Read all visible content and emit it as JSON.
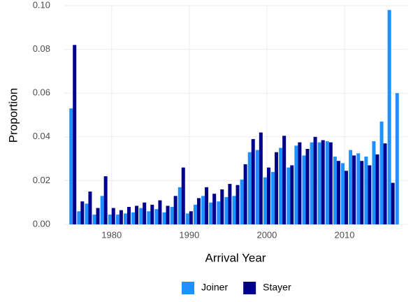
{
  "chart_data": {
    "type": "bar",
    "x_label": "Arrival Year",
    "y_label": "Proportion",
    "x": [
      1975,
      1976,
      1977,
      1978,
      1979,
      1980,
      1981,
      1982,
      1983,
      1984,
      1985,
      1986,
      1987,
      1988,
      1989,
      1990,
      1991,
      1992,
      1993,
      1994,
      1995,
      1996,
      1997,
      1998,
      1999,
      2000,
      2001,
      2002,
      2003,
      2004,
      2005,
      2006,
      2007,
      2008,
      2009,
      2010,
      2011,
      2012,
      2013,
      2014,
      2015,
      2016,
      2017
    ],
    "series": [
      {
        "name": "Joiner",
        "color": "#1e90ff",
        "values": [
          0.053,
          0.006,
          0.0095,
          0.0045,
          0.013,
          0.0045,
          0.0045,
          0.005,
          0.0055,
          0.0075,
          0.006,
          0.007,
          0.0055,
          0.008,
          0.017,
          0.005,
          0.009,
          0.013,
          0.01,
          0.0105,
          0.0125,
          0.013,
          0.0205,
          0.033,
          0.034,
          0.0215,
          0.024,
          0.035,
          0.026,
          0.036,
          0.0315,
          0.0375,
          0.0375,
          0.038,
          0.031,
          0.028,
          0.034,
          0.0325,
          0.031,
          0.038,
          0.047,
          0.098,
          0.06
        ]
      },
      {
        "name": "Stayer",
        "color": "#00008b",
        "values": [
          0.082,
          0.0105,
          0.015,
          0.0075,
          0.022,
          0.0075,
          0.0065,
          0.008,
          0.0085,
          0.01,
          0.009,
          0.011,
          0.0085,
          0.013,
          0.026,
          0.006,
          0.012,
          0.017,
          0.014,
          0.016,
          0.0185,
          0.018,
          0.0275,
          0.039,
          0.042,
          0.026,
          0.033,
          0.0405,
          0.027,
          0.0375,
          0.0345,
          0.04,
          0.0385,
          0.0375,
          0.029,
          0.0245,
          0.0315,
          0.029,
          0.027,
          0.032,
          0.037,
          0.019,
          null
        ]
      }
    ],
    "xlim": [
      1973.9,
      2018.1
    ],
    "xticks": [
      1980,
      1990,
      2000,
      2010
    ],
    "ylim": [
      0,
      0.1
    ],
    "yticks": [
      {
        "value": 0,
        "label": "0.00"
      },
      {
        "value": 0.02,
        "label": "0.02"
      },
      {
        "value": 0.04,
        "label": "0.04"
      },
      {
        "value": 0.06,
        "label": "0.06"
      },
      {
        "value": 0.08,
        "label": "0.08"
      },
      {
        "value": 0.1,
        "label": "0.10"
      }
    ],
    "grid": true,
    "legend": "bottom"
  }
}
